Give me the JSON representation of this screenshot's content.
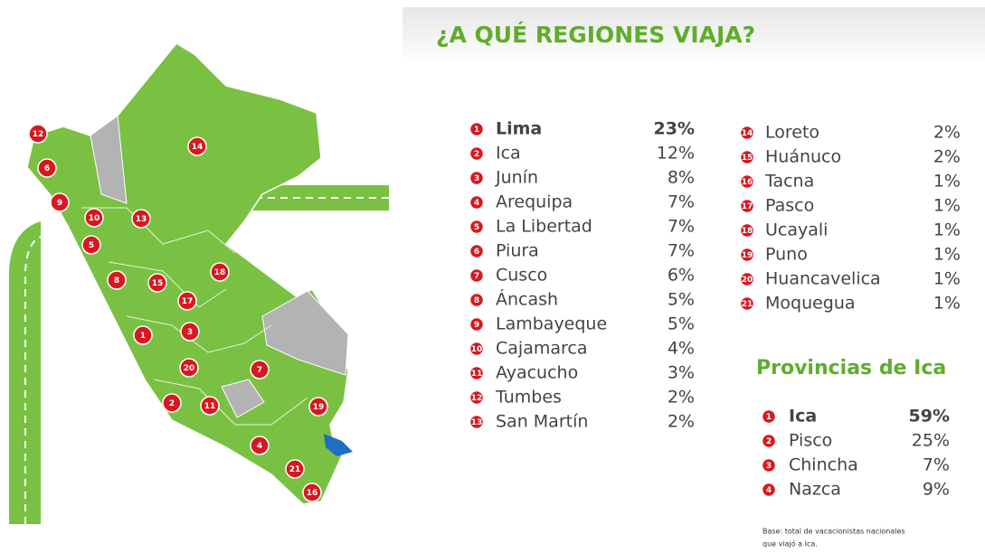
{
  "title": "¿A QUÉ REGIONES VIAJA?",
  "regions": [
    {
      "rank": "1",
      "name": "Lima",
      "share": "23%"
    },
    {
      "rank": "2",
      "name": "Ica",
      "share": "12%"
    },
    {
      "rank": "3",
      "name": "Junín",
      "share": "8%"
    },
    {
      "rank": "4",
      "name": "Arequipa",
      "share": "7%"
    },
    {
      "rank": "5",
      "name": "La Libertad",
      "share": "7%"
    },
    {
      "rank": "6",
      "name": "Piura",
      "share": "7%"
    },
    {
      "rank": "7",
      "name": "Cusco",
      "share": "6%"
    },
    {
      "rank": "8",
      "name": "Áncash",
      "share": "5%"
    },
    {
      "rank": "9",
      "name": "Lambayeque",
      "share": "5%"
    },
    {
      "rank": "10",
      "name": "Cajamarca",
      "share": "4%"
    },
    {
      "rank": "11",
      "name": "Ayacucho",
      "share": "3%"
    },
    {
      "rank": "12",
      "name": "Tumbes",
      "share": "2%"
    },
    {
      "rank": "13",
      "name": "San Martín",
      "share": "2%"
    },
    {
      "rank": "14",
      "name": "Loreto",
      "share": "2%"
    },
    {
      "rank": "15",
      "name": "Huánuco",
      "share": "2%"
    },
    {
      "rank": "16",
      "name": "Tacna",
      "share": "1%"
    },
    {
      "rank": "17",
      "name": "Pasco",
      "share": "1%"
    },
    {
      "rank": "18",
      "name": "Ucayali",
      "share": "1%"
    },
    {
      "rank": "19",
      "name": "Puno",
      "share": "1%"
    },
    {
      "rank": "20",
      "name": "Huancavelica",
      "share": "1%"
    },
    {
      "rank": "21",
      "name": "Moquegua",
      "share": "1%"
    }
  ],
  "provinces": {
    "title": "Provincias de Ica",
    "items": [
      {
        "rank": "1",
        "name": "Ica",
        "share": "59%"
      },
      {
        "rank": "2",
        "name": "Pisco",
        "share": "25%"
      },
      {
        "rank": "3",
        "name": "Chincha",
        "share": "7%"
      },
      {
        "rank": "4",
        "name": "Nazca",
        "share": "9%"
      }
    ]
  },
  "map_markers": [
    "12",
    "6",
    "9",
    "10",
    "5",
    "13",
    "14",
    "8",
    "15",
    "17",
    "18",
    "1",
    "3",
    "20",
    "7",
    "2",
    "11",
    "19",
    "4",
    "21",
    "16"
  ],
  "footnote": [
    "Base: total de vacacionistas nacionales",
    "que viajó a Ica."
  ]
}
